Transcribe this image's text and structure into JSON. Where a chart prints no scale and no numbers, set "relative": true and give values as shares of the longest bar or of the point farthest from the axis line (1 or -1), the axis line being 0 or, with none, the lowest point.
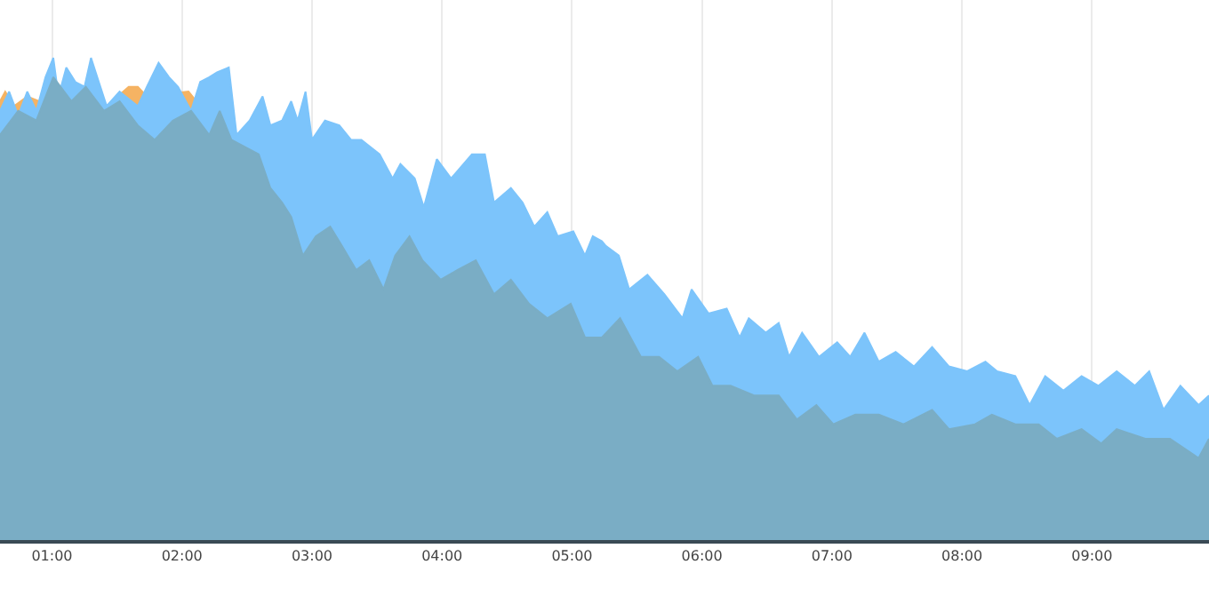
{
  "chart_data": {
    "type": "area",
    "relative": true,
    "grid": "x",
    "xlim": [
      0.6,
      9.9
    ],
    "xticks": [
      {
        "value": 1,
        "label": "01:00"
      },
      {
        "value": 2,
        "label": "02:00"
      },
      {
        "value": 3,
        "label": "03:00"
      },
      {
        "value": 4,
        "label": "04:00"
      },
      {
        "value": 5,
        "label": "05:00"
      },
      {
        "value": 6,
        "label": "06:00"
      },
      {
        "value": 7,
        "label": "07:00"
      },
      {
        "value": 8,
        "label": "08:00"
      },
      {
        "value": 9,
        "label": "09:00"
      }
    ],
    "series": [
      {
        "color": "#f5b363",
        "x": [
          0.6,
          0.64,
          0.71,
          0.81,
          0.9,
          1.42,
          1.59,
          1.66,
          1.73,
          2.05,
          2.14
        ],
        "values": [
          0.91,
          0.93,
          0.9,
          0.92,
          0.91,
          0.9,
          0.94,
          0.94,
          0.92,
          0.93,
          0.9
        ]
      },
      {
        "color": "#7cc4fb",
        "x": [
          0.6,
          0.67,
          0.74,
          0.81,
          0.88,
          0.95,
          1.01,
          1.05,
          1.11,
          1.18,
          1.25,
          1.3,
          1.36,
          1.42,
          1.52,
          1.66,
          1.73,
          1.82,
          1.9,
          1.97,
          2.07,
          2.14,
          2.21,
          2.27,
          2.36,
          2.42,
          2.52,
          2.62,
          2.68,
          2.77,
          2.84,
          2.89,
          2.95,
          3.0,
          3.1,
          3.21,
          3.3,
          3.38,
          3.52,
          3.62,
          3.68,
          3.79,
          3.86,
          3.96,
          4.07,
          4.23,
          4.33,
          4.4,
          4.53,
          4.62,
          4.71,
          4.81,
          4.89,
          5.01,
          5.1,
          5.16,
          5.23,
          5.26,
          5.36,
          5.44,
          5.58,
          5.71,
          5.85,
          5.92,
          6.05,
          6.19,
          6.29,
          6.36,
          6.49,
          6.59,
          6.67,
          6.77,
          6.9,
          7.04,
          7.14,
          7.25,
          7.36,
          7.49,
          7.63,
          7.77,
          7.9,
          8.04,
          8.18,
          8.27,
          8.41,
          8.52,
          8.64,
          8.78,
          8.92,
          9.05,
          9.19,
          9.33,
          9.44,
          9.55,
          9.68,
          9.82,
          9.9
        ],
        "values": [
          0.89,
          0.93,
          0.88,
          0.93,
          0.89,
          0.96,
          1.0,
          0.92,
          0.98,
          0.95,
          0.94,
          1.0,
          0.95,
          0.9,
          0.93,
          0.9,
          0.94,
          0.99,
          0.96,
          0.94,
          0.89,
          0.95,
          0.96,
          0.97,
          0.98,
          0.84,
          0.87,
          0.92,
          0.86,
          0.87,
          0.91,
          0.87,
          0.93,
          0.83,
          0.87,
          0.86,
          0.83,
          0.83,
          0.8,
          0.75,
          0.78,
          0.75,
          0.69,
          0.79,
          0.75,
          0.8,
          0.8,
          0.7,
          0.73,
          0.7,
          0.65,
          0.68,
          0.63,
          0.64,
          0.59,
          0.63,
          0.62,
          0.61,
          0.59,
          0.52,
          0.55,
          0.51,
          0.46,
          0.52,
          0.47,
          0.48,
          0.42,
          0.46,
          0.43,
          0.45,
          0.38,
          0.43,
          0.38,
          0.41,
          0.38,
          0.43,
          0.37,
          0.39,
          0.36,
          0.4,
          0.36,
          0.35,
          0.37,
          0.35,
          0.34,
          0.28,
          0.34,
          0.31,
          0.34,
          0.32,
          0.35,
          0.32,
          0.35,
          0.27,
          0.32,
          0.28,
          0.3
        ]
      },
      {
        "color": "#7aadc5",
        "x": [
          0.6,
          0.74,
          0.88,
          1.01,
          1.15,
          1.26,
          1.4,
          1.52,
          1.66,
          1.79,
          1.93,
          2.07,
          2.21,
          2.29,
          2.38,
          2.59,
          2.68,
          2.77,
          2.84,
          2.93,
          3.03,
          3.14,
          3.23,
          3.34,
          3.44,
          3.55,
          3.64,
          3.75,
          3.85,
          3.99,
          4.12,
          4.26,
          4.4,
          4.53,
          4.67,
          4.81,
          4.99,
          5.1,
          5.23,
          5.37,
          5.53,
          5.67,
          5.81,
          5.97,
          6.08,
          6.22,
          6.4,
          6.59,
          6.73,
          6.88,
          7.01,
          7.18,
          7.36,
          7.55,
          7.77,
          7.9,
          8.1,
          8.23,
          8.41,
          8.59,
          8.73,
          8.92,
          9.07,
          9.19,
          9.41,
          9.6,
          9.82,
          9.9
        ],
        "values": [
          0.84,
          0.89,
          0.87,
          0.96,
          0.91,
          0.94,
          0.89,
          0.91,
          0.86,
          0.83,
          0.87,
          0.89,
          0.84,
          0.89,
          0.83,
          0.8,
          0.73,
          0.7,
          0.67,
          0.59,
          0.63,
          0.65,
          0.61,
          0.56,
          0.58,
          0.52,
          0.59,
          0.63,
          0.58,
          0.54,
          0.56,
          0.58,
          0.51,
          0.54,
          0.49,
          0.46,
          0.49,
          0.42,
          0.42,
          0.46,
          0.38,
          0.38,
          0.35,
          0.38,
          0.32,
          0.32,
          0.3,
          0.3,
          0.25,
          0.28,
          0.24,
          0.26,
          0.26,
          0.24,
          0.27,
          0.23,
          0.24,
          0.26,
          0.24,
          0.24,
          0.21,
          0.23,
          0.2,
          0.23,
          0.21,
          0.21,
          0.17,
          0.21
        ]
      }
    ]
  }
}
